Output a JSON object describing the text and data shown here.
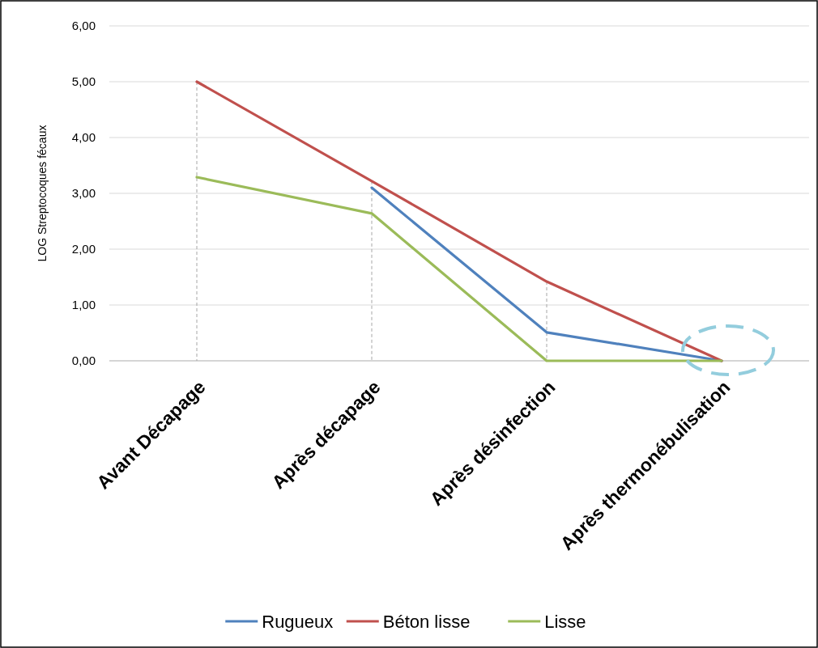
{
  "chart_data": {
    "type": "line",
    "ylabel": "LOG Streptocoques fécaux",
    "categories": [
      "Avant Décapage",
      "Après décapage",
      "Après désinfection",
      "Après thermonébulisation"
    ],
    "series": [
      {
        "name": "Rugueux",
        "color": "#4f81bd",
        "values": [
          null,
          3.1,
          0.51,
          0
        ]
      },
      {
        "name": "Béton lisse",
        "color": "#c0504d",
        "values": [
          5.0,
          3.22,
          1.42,
          0
        ]
      },
      {
        "name": "Lisse",
        "color": "#9bbb59",
        "values": [
          3.29,
          2.64,
          0,
          0
        ]
      }
    ],
    "ylim": [
      0,
      6
    ],
    "yticks": [
      {
        "value": 0,
        "label": "0,00"
      },
      {
        "value": 1,
        "label": "1,00"
      },
      {
        "value": 2,
        "label": "2,00"
      },
      {
        "value": 3,
        "label": "3,00"
      },
      {
        "value": 4,
        "label": "4,00"
      },
      {
        "value": 5,
        "label": "5,00"
      },
      {
        "value": 6,
        "label": "6,00"
      }
    ],
    "grid": "y",
    "legend": "bottom",
    "marker": "none",
    "line_style": "solid",
    "ref_lines": [
      {
        "axis": "x",
        "value": "Avant Décapage",
        "color": "#a6a6a6",
        "line_style": "dashed"
      },
      {
        "axis": "x",
        "value": "Après décapage",
        "color": "#a6a6a6",
        "line_style": "dashed"
      },
      {
        "axis": "x",
        "value": "Après désinfection",
        "color": "#a6a6a6",
        "line_style": "dashed"
      }
    ]
  }
}
